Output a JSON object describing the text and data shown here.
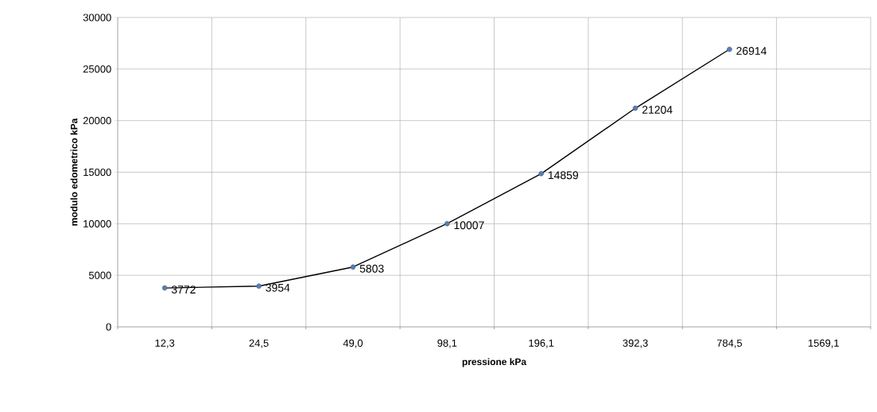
{
  "chart_data": {
    "type": "line",
    "xlabel": "pressione kPa",
    "ylabel": "modulo edometrico kPa",
    "categories": [
      "12,3",
      "24,5",
      "49,0",
      "98,1",
      "196,1",
      "392,3",
      "784,5",
      "1569,1"
    ],
    "values": [
      3772,
      3954,
      5803,
      10007,
      14859,
      21204,
      26914,
      null
    ],
    "color": "#000000",
    "colors": [
      "#4f81bd",
      "#4f81bd",
      "#4f81bd",
      "#4f81bd",
      "#4f81bd",
      "#4f81bd",
      "#4f81bd",
      "#4f81bd"
    ],
    "marker": "circle",
    "line_style": "solid",
    "ylim": [
      0,
      30000
    ],
    "yticks": [
      0,
      5000,
      10000,
      15000,
      20000,
      25000,
      30000
    ],
    "grid": true,
    "data_labels": true
  }
}
